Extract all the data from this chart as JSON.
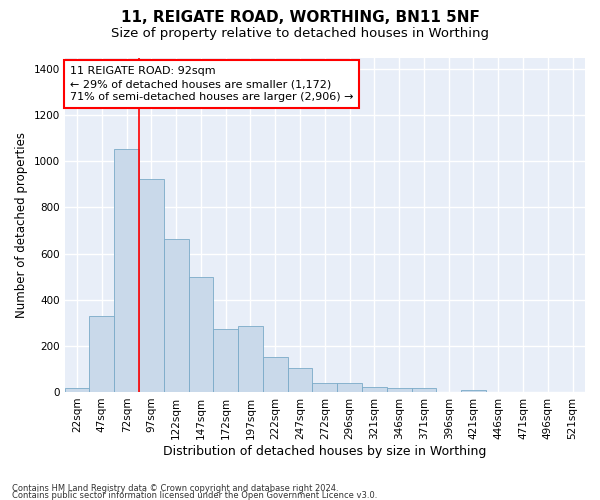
{
  "title1": "11, REIGATE ROAD, WORTHING, BN11 5NF",
  "title2": "Size of property relative to detached houses in Worthing",
  "xlabel": "Distribution of detached houses by size in Worthing",
  "ylabel": "Number of detached properties",
  "bar_color": "#c9d9ea",
  "bar_edge_color": "#7aaac8",
  "background_color": "#e8eef8",
  "grid_color": "#ffffff",
  "bin_labels": [
    "22sqm",
    "47sqm",
    "72sqm",
    "97sqm",
    "122sqm",
    "147sqm",
    "172sqm",
    "197sqm",
    "222sqm",
    "247sqm",
    "272sqm",
    "296sqm",
    "321sqm",
    "346sqm",
    "371sqm",
    "396sqm",
    "421sqm",
    "446sqm",
    "471sqm",
    "496sqm",
    "521sqm"
  ],
  "bar_values": [
    15,
    330,
    1055,
    925,
    665,
    500,
    275,
    285,
    150,
    105,
    40,
    40,
    20,
    15,
    15,
    0,
    10,
    0,
    0,
    0,
    0
  ],
  "vline_x": 3,
  "annotation_line1": "11 REIGATE ROAD: 92sqm",
  "annotation_line2": "← 29% of detached houses are smaller (1,172)",
  "annotation_line3": "71% of semi-detached houses are larger (2,906) →",
  "ylim": [
    0,
    1450
  ],
  "yticks": [
    0,
    200,
    400,
    600,
    800,
    1000,
    1200,
    1400
  ],
  "footer1": "Contains HM Land Registry data © Crown copyright and database right 2024.",
  "footer2": "Contains public sector information licensed under the Open Government Licence v3.0.",
  "title1_fontsize": 11,
  "title2_fontsize": 9.5,
  "xlabel_fontsize": 9,
  "ylabel_fontsize": 8.5,
  "tick_fontsize": 7.5,
  "footer_fontsize": 6,
  "annot_fontsize": 8
}
